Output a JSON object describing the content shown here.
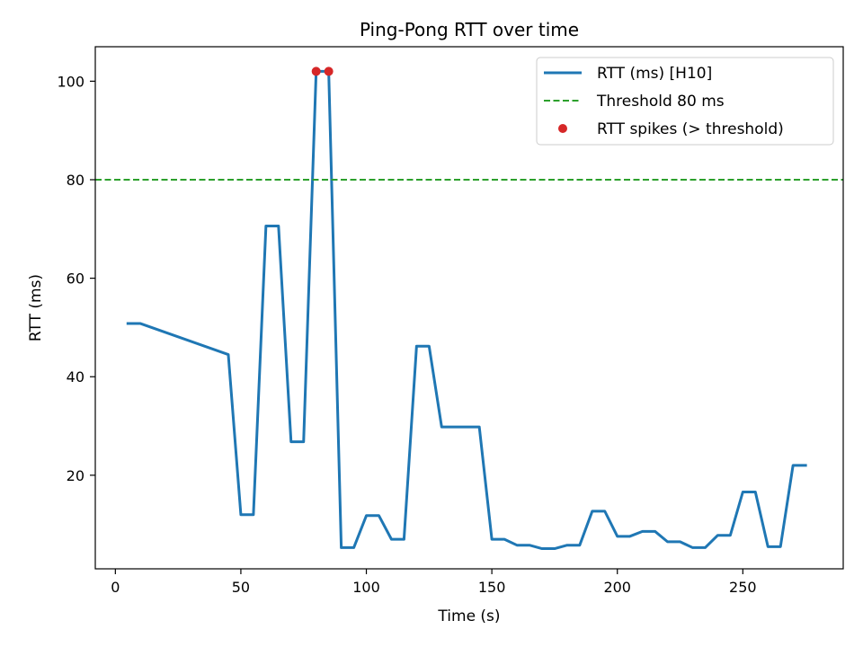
{
  "chart_data": {
    "type": "line",
    "title": "Ping-Pong RTT over time",
    "xlabel": "Time (s)",
    "ylabel": "RTT (ms)",
    "xlim": [
      -8,
      290
    ],
    "ylim": [
      1,
      107
    ],
    "xticks": [
      0,
      50,
      100,
      150,
      200,
      250
    ],
    "yticks": [
      20,
      40,
      60,
      80,
      100
    ],
    "grid": false,
    "legend_position": "top-right",
    "series": [
      {
        "name": "RTT (ms) [H10]",
        "style": "line",
        "color": "#1f77b4",
        "x": [
          5,
          10,
          45,
          50,
          55,
          60,
          65,
          70,
          75,
          80,
          85,
          90,
          95,
          100,
          105,
          110,
          115,
          120,
          125,
          130,
          135,
          140,
          145,
          150,
          155,
          160,
          165,
          170,
          175,
          180,
          185,
          190,
          195,
          200,
          205,
          210,
          215,
          220,
          225,
          230,
          235,
          240,
          245,
          250,
          255,
          260,
          265,
          270,
          275
        ],
        "y": [
          50.8,
          50.8,
          44.5,
          12.0,
          12.0,
          70.6,
          70.6,
          26.8,
          26.8,
          102.0,
          102.0,
          5.3,
          5.3,
          11.8,
          11.8,
          7.0,
          7.0,
          46.2,
          46.2,
          29.8,
          29.8,
          29.8,
          29.8,
          7.0,
          7.0,
          5.8,
          5.8,
          5.1,
          5.1,
          5.8,
          5.8,
          12.7,
          12.7,
          7.6,
          7.6,
          8.6,
          8.6,
          6.5,
          6.5,
          5.3,
          5.3,
          7.8,
          7.8,
          16.6,
          16.6,
          5.5,
          5.5,
          22.0,
          22.0
        ]
      },
      {
        "name": "Threshold 80 ms",
        "style": "hline",
        "color": "#2ca02c",
        "y": 80
      },
      {
        "name": "RTT spikes (> threshold)",
        "style": "scatter",
        "color": "#d62728",
        "x": [
          80,
          85
        ],
        "y": [
          102.0,
          102.0
        ]
      }
    ]
  }
}
